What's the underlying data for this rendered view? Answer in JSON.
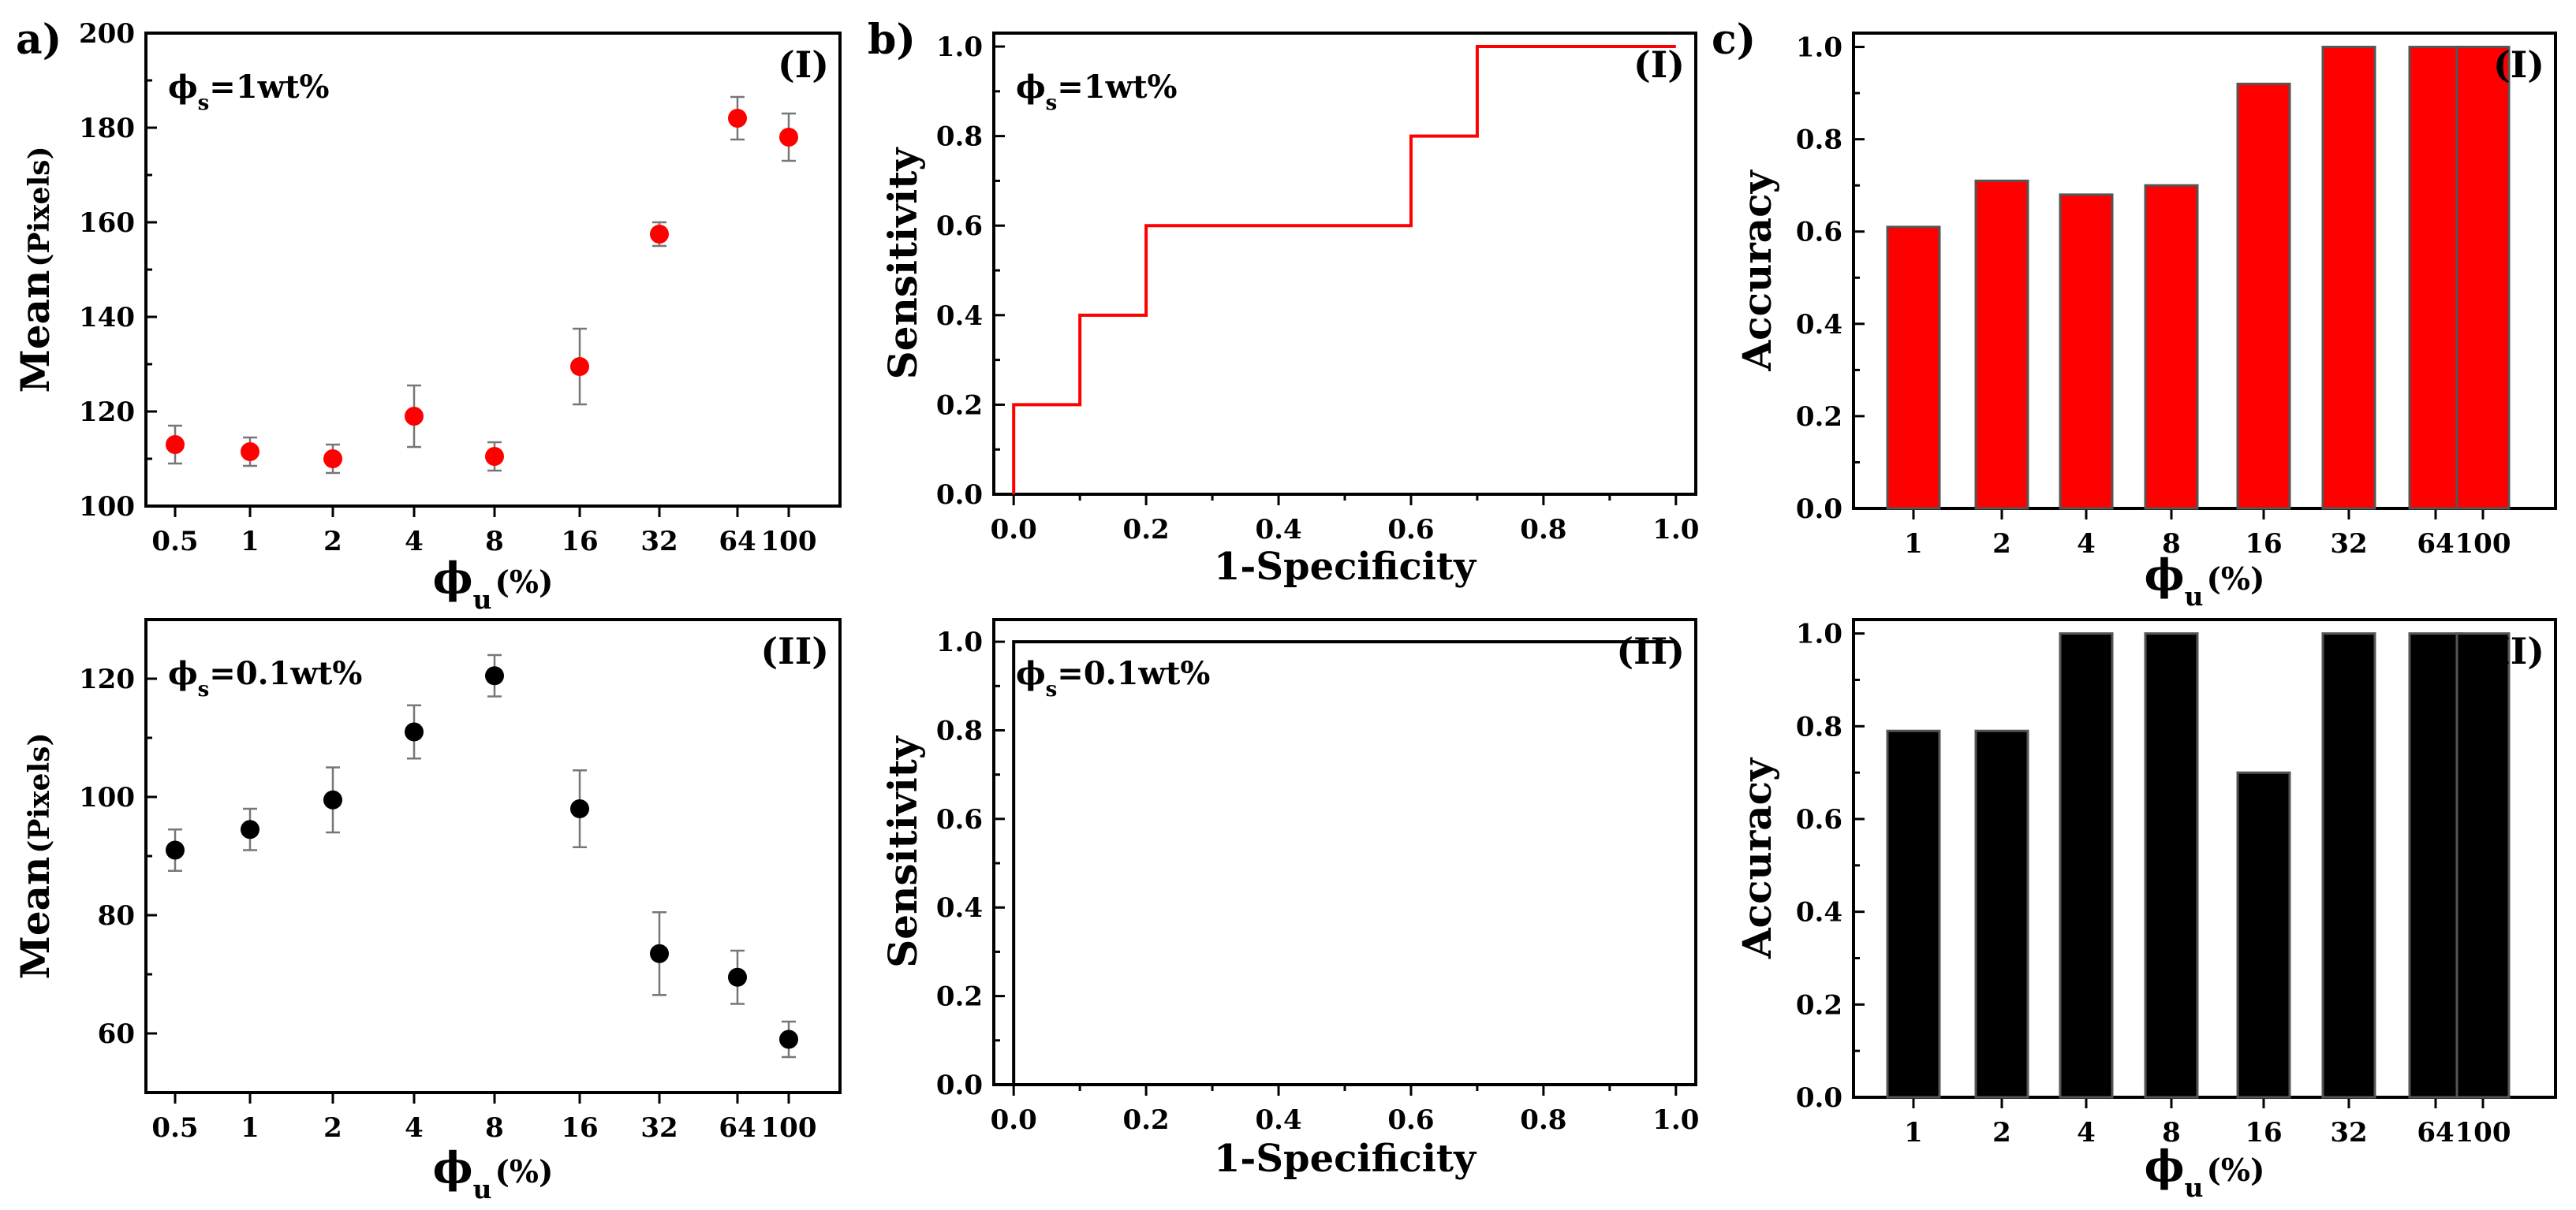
{
  "panel_labels": [
    "a)",
    "b)",
    "c)"
  ],
  "colors": {
    "red": "#ff0000",
    "black": "#000000",
    "bar_edge": "#555555",
    "errbar": "#777777"
  },
  "chart_data": [
    {
      "id": "a1",
      "type": "scatter",
      "panel": "a",
      "roman": "(I)",
      "annotation": {
        "prefix": "ϕ",
        "sub": "s",
        "suffix": "=1wt%"
      },
      "xlabel": {
        "main": "ϕ",
        "sub": "u",
        "tail": "(%)"
      },
      "ylabel": {
        "main": "Mean",
        "tail": "(Pixels)"
      },
      "categories": [
        "0.5",
        "1",
        "2",
        "4",
        "8",
        "16",
        "32",
        "64",
        "100"
      ],
      "values": [
        113,
        111.5,
        110,
        119,
        110.5,
        129.5,
        157.5,
        182,
        178
      ],
      "errors": [
        4,
        3,
        3,
        6.5,
        3,
        8,
        2.5,
        4.5,
        5
      ],
      "ylim": [
        100,
        200
      ],
      "yticks": [
        100,
        120,
        140,
        160,
        180,
        200
      ],
      "color": "#ff0000"
    },
    {
      "id": "a2",
      "type": "scatter",
      "panel": "a",
      "roman": "(II)",
      "annotation": {
        "prefix": "ϕ",
        "sub": "s",
        "suffix": "=0.1wt%"
      },
      "xlabel": {
        "main": "ϕ",
        "sub": "u",
        "tail": "(%)"
      },
      "ylabel": {
        "main": "Mean",
        "tail": "(Pixels)"
      },
      "categories": [
        "0.5",
        "1",
        "2",
        "4",
        "8",
        "16",
        "32",
        "64",
        "100"
      ],
      "values": [
        91,
        94.5,
        99.5,
        111,
        120.5,
        98,
        73.5,
        69.5,
        59
      ],
      "errors": [
        3.5,
        3.5,
        5.5,
        4.5,
        3.5,
        6.5,
        7,
        4.5,
        3
      ],
      "ylim": [
        50,
        130
      ],
      "yticks": [
        60,
        80,
        100,
        120
      ],
      "color": "#000000"
    },
    {
      "id": "b1",
      "type": "line",
      "panel": "b",
      "roman": "(I)",
      "annotation": {
        "prefix": "ϕ",
        "sub": "s",
        "suffix": "=1wt%"
      },
      "xlabel": {
        "main": "1-Specificity"
      },
      "ylabel": {
        "main": "Sensitivity"
      },
      "x": [
        0,
        0,
        0.1,
        0.1,
        0.2,
        0.2,
        0.6,
        0.6,
        0.7,
        0.7,
        1.0
      ],
      "y": [
        0,
        0.2,
        0.2,
        0.4,
        0.4,
        0.6,
        0.6,
        0.8,
        0.8,
        1.0,
        1.0
      ],
      "xlim": [
        -0.03,
        1.03
      ],
      "ylim": [
        0,
        1.03
      ],
      "xticks": [
        0.0,
        0.2,
        0.4,
        0.6,
        0.8,
        1.0
      ],
      "yticks": [
        0.0,
        0.2,
        0.4,
        0.6,
        0.8,
        1.0
      ],
      "color": "#ff0000"
    },
    {
      "id": "b2",
      "type": "line",
      "panel": "b",
      "roman": "(II)",
      "annotation": {
        "prefix": "ϕ",
        "sub": "s",
        "suffix": "=0.1wt%"
      },
      "xlabel": {
        "main": "1-Specificity"
      },
      "ylabel": {
        "main": "Sensitivity"
      },
      "x": [
        0,
        0,
        1.0
      ],
      "y": [
        0,
        1.0,
        1.0
      ],
      "xlim": [
        -0.03,
        1.03
      ],
      "ylim": [
        0,
        1.05
      ],
      "xticks": [
        0.0,
        0.2,
        0.4,
        0.6,
        0.8,
        1.0
      ],
      "yticks": [
        0.0,
        0.2,
        0.4,
        0.6,
        0.8,
        1.0
      ],
      "color": "#000000"
    },
    {
      "id": "c1",
      "type": "bar",
      "panel": "c",
      "roman": "(I)",
      "xlabel": {
        "main": "ϕ",
        "sub": "u",
        "tail": "(%)"
      },
      "ylabel": {
        "main": "Accuracy"
      },
      "categories": [
        "1",
        "2",
        "4",
        "8",
        "16",
        "32",
        "64",
        "100"
      ],
      "values": [
        0.61,
        0.71,
        0.68,
        0.7,
        0.92,
        1.0,
        1.0,
        1.0
      ],
      "ylim": [
        0,
        1.03
      ],
      "yticks": [
        0.0,
        0.2,
        0.4,
        0.6,
        0.8,
        1.0
      ],
      "color": "#ff0000"
    },
    {
      "id": "c2",
      "type": "bar",
      "panel": "c",
      "roman": "(II)",
      "xlabel": {
        "main": "ϕ",
        "sub": "u",
        "tail": "(%)"
      },
      "ylabel": {
        "main": "Accuracy"
      },
      "categories": [
        "1",
        "2",
        "4",
        "8",
        "16",
        "32",
        "64",
        "100"
      ],
      "values": [
        0.79,
        0.79,
        1.0,
        1.0,
        0.7,
        1.0,
        1.0,
        1.0
      ],
      "ylim": [
        0,
        1.03
      ],
      "yticks": [
        0.0,
        0.2,
        0.4,
        0.6,
        0.8,
        1.0
      ],
      "color": "#000000"
    }
  ]
}
